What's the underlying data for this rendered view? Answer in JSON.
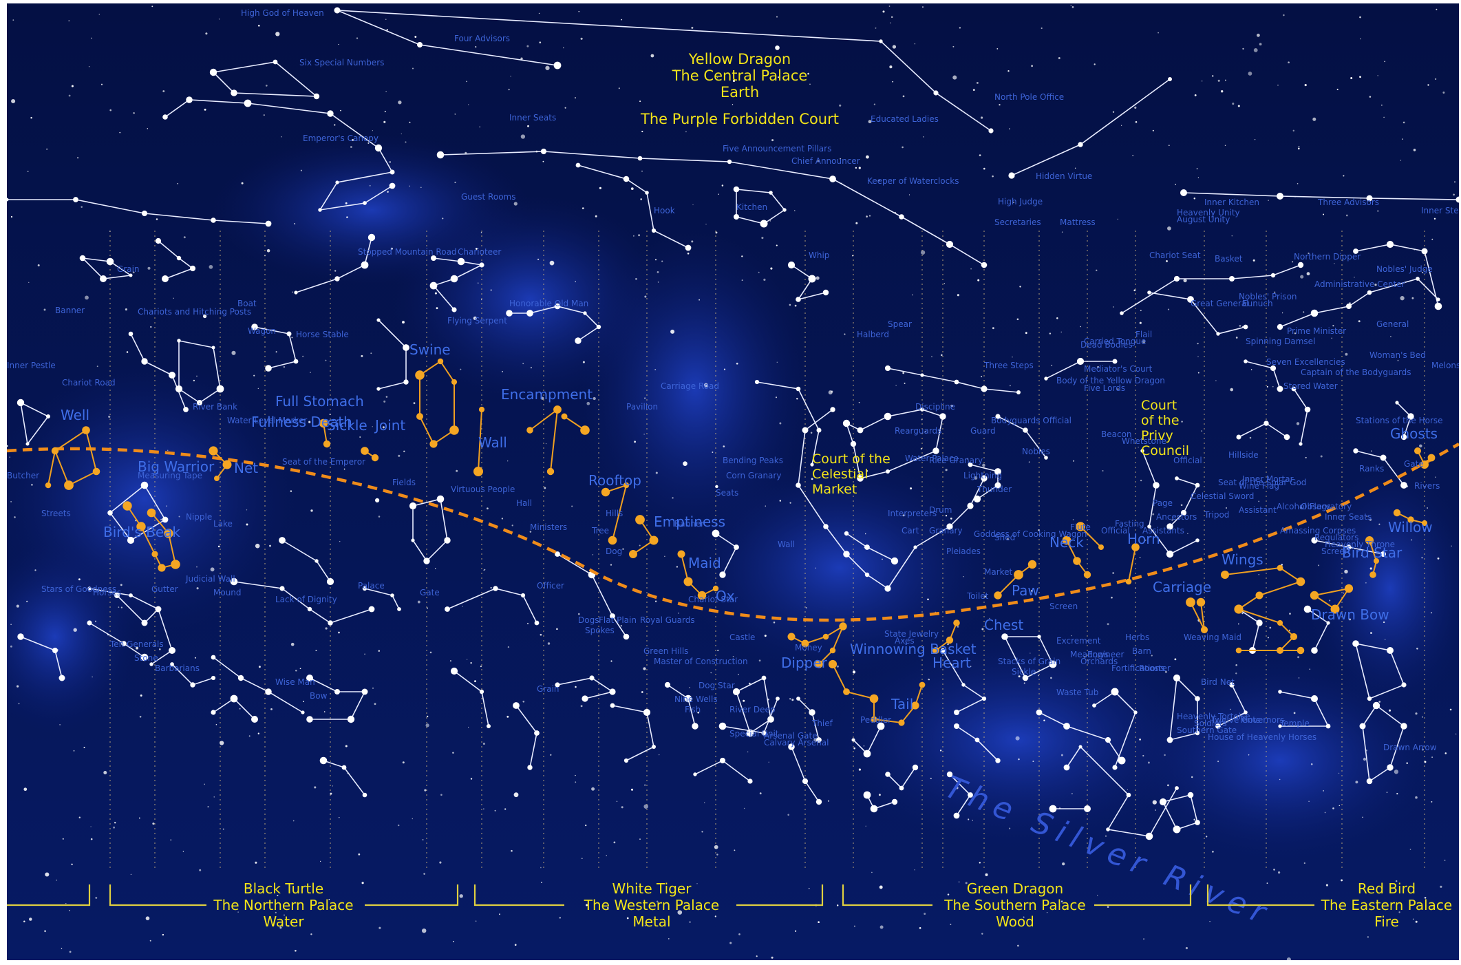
{
  "central": {
    "lines": [
      "Yellow Dragon",
      "The Central Palace",
      "Earth"
    ],
    "court": "The Purple Forbidden Court"
  },
  "palaces": [
    {
      "name": "Black Turtle",
      "palace": "The Northern Palace",
      "element": "Water"
    },
    {
      "name": "White Tiger",
      "palace": "The Western Palace",
      "element": "Metal"
    },
    {
      "name": "Green Dragon",
      "palace": "The Southern Palace",
      "element": "Wood"
    },
    {
      "name": "Red Bird",
      "palace": "The Eastern Palace",
      "element": "Fire"
    }
  ],
  "river": "The Silver River",
  "yellow_labels": [
    "Court of the Celestial Market",
    "Court of the Privy Council"
  ],
  "mansions": [
    "Well",
    "Big Warrior",
    "Bird's Beak",
    "Net",
    "Fullness Death",
    "Full Stomach",
    "Sickle",
    "Joint",
    "Swine",
    "Wall",
    "Encampment",
    "Rooftop",
    "Emptiness",
    "Maid",
    "Ox",
    "Dipper",
    "Winnowing Basket",
    "Tail",
    "Heart",
    "Chest",
    "Paw",
    "Neck",
    "Horn",
    "Carriage",
    "Wings",
    "Drawn Bow",
    "Bird Star",
    "Willow",
    "Ghosts"
  ],
  "labels": [
    "High God of Heaven",
    "Four Advisors",
    "Six Special Numbers",
    "Inner Seats",
    "Emperor's Canopy",
    "Five Announcement Pillars",
    "Chief Announcer",
    "Keeper of Waterclocks",
    "Educated Ladies",
    "North Pole Office",
    "Hidden Virtue",
    "Guest Rooms",
    "Hook",
    "Kitchen",
    "High Judge",
    "Secretaries",
    "Mattress",
    "Inner Kitchen",
    "Heavenly Unity",
    "August Unity",
    "Three Advisors",
    "Inner Steps",
    "Grain",
    "Banner",
    "Chariots and Hitching Posts",
    "Boat",
    "Stopped Mountain Road",
    "Charioteer",
    "Whip",
    "Chariot Seat",
    "Basket",
    "Northern Dipper",
    "Nobles' Judge",
    "Nobles' Prison",
    "Administrative Center",
    "Eunuch",
    "Prime Minister",
    "General",
    "Honorable Old Man",
    "Flying Serpent",
    "Horse Stable",
    "Wagon",
    "Great General",
    "Dead Bodies",
    "Carried Tongue",
    "Spear",
    "Halberd",
    "Flail",
    "Spinning Damsel",
    "Woman's Bed",
    "Seven Excellencies",
    "Captain of the Bodyguards",
    "Three Steps",
    "Mediator's Court",
    "Body of the Yellow Dragon",
    "Stored Water",
    "Five Lords",
    "Inner Pestle",
    "Chariot Road",
    "River Bank",
    "Carriage Road",
    "Pavilion",
    "Discipline",
    "Rearguards",
    "Bodyguards Official",
    "Guard",
    "Nobles",
    "Beacon",
    "Whetstone",
    "Hillside",
    "Official",
    "Gate",
    "Inner Mortar",
    "Bending Peaks",
    "Melons",
    "Ranks",
    "Butcher",
    "Measuring Tape",
    "Seat of the Emperor",
    "Stations of the Horse",
    "Seats",
    "Celestial Sword",
    "Tripod",
    "Page",
    "Seat of the Solar God",
    "Wine Flag",
    "Water Level Marker",
    "Water Palace",
    "Rice Granary",
    "Lightning",
    "Thunder",
    "Drum",
    "Fasting",
    "Ancestors",
    "Assistant",
    "Amassing Corpses",
    "Regulators",
    "Heavenly Throne",
    "Inner Seats",
    "Screen",
    "Observatory",
    "Alcohol Flags",
    "Rivers",
    "Hills",
    "Banner",
    "Interpreters",
    "Corn Granary",
    "Cart",
    "Granary",
    "Goddess of Cooking Wagon",
    "Shed",
    "Flute",
    "Official",
    "Assistants",
    "Streets",
    "Nipple",
    "Lake",
    "Fields",
    "Virtuous People",
    "Hall",
    "Ministers",
    "Tree",
    "Dog",
    "Wall",
    "Pleiades",
    "Market",
    "Toilet",
    "Screen",
    "Excrement",
    "Meadows",
    "Herbs",
    "Barn",
    "Engineer",
    "Fortifications",
    "Rooster",
    "Weaving Maid",
    "Stars of Goodness",
    "Horses",
    "Gutter",
    "Judicial Wall",
    "Mound",
    "Lack of Dignity",
    "Palace",
    "Gate",
    "Officer",
    "Chariot Star",
    "Flat Plain",
    "Royal Guards",
    "Castle",
    "Money",
    "State Jewelry",
    "Axes",
    "Stacks of Grain",
    "Sickle",
    "Bird Net",
    "Tents",
    "Dog Star",
    "Dogs",
    "Spokes",
    "Green Hills",
    "Master of Construction",
    "Orchards",
    "Waste Tub",
    "Twelve Governors",
    "Nine Wells",
    "Fish",
    "Thief",
    "Ten Generals",
    "Stone",
    "Barbarians",
    "Wise Man",
    "Bow",
    "Grain",
    "River Deep",
    "Peddler",
    "Heavenly Tortoise",
    "Soldiers",
    "Special Unit",
    "Arsenal Gate",
    "Calvary Arsenal",
    "Southern Gate",
    "House of Heavenly Horses",
    "Temple",
    "Drawn Arrow"
  ]
}
